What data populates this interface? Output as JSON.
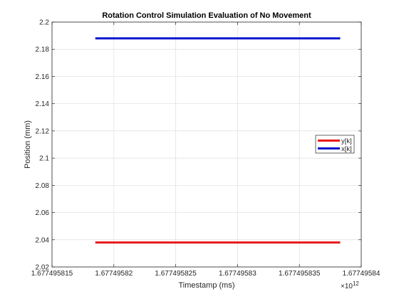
{
  "chart_data": {
    "type": "line",
    "title": "Rotation Control Simulation Evaluation of No Movement",
    "xlabel": "Timestamp (ms)",
    "ylabel": "Position (mm)",
    "x_exponent_label": "×10",
    "x_exponent_power": "12",
    "xlim": [
      1.677495815,
      1.67749584
    ],
    "ylim": [
      2.02,
      2.2
    ],
    "x_scale_factor": 1000000000000.0,
    "grid": true,
    "legend_position": "right",
    "xticks": [
      1.677495815,
      1.67749582,
      1.677495825,
      1.67749583,
      1.677495835,
      1.67749584
    ],
    "xtick_labels": [
      "1.677495815",
      "1.67749582",
      "1.677495825",
      "1.67749583",
      "1.677495835",
      "1.67749584"
    ],
    "yticks": [
      2.02,
      2.04,
      2.06,
      2.08,
      2.1,
      2.12,
      2.14,
      2.16,
      2.18,
      2.2
    ],
    "ytick_labels": [
      "2.02",
      "2.04",
      "2.06",
      "2.08",
      "2.1",
      "2.12",
      "2.14",
      "2.16",
      "2.18",
      "2.2"
    ],
    "series": [
      {
        "name": "y[k]",
        "color": "#e8191a",
        "x": [
          1.6774958185,
          1.6774958383
        ],
        "values": [
          2.038,
          2.038
        ]
      },
      {
        "name": "x[k]",
        "color": "#0a14cc",
        "x": [
          1.6774958185,
          1.6774958383
        ],
        "values": [
          2.188,
          2.188
        ]
      }
    ]
  }
}
